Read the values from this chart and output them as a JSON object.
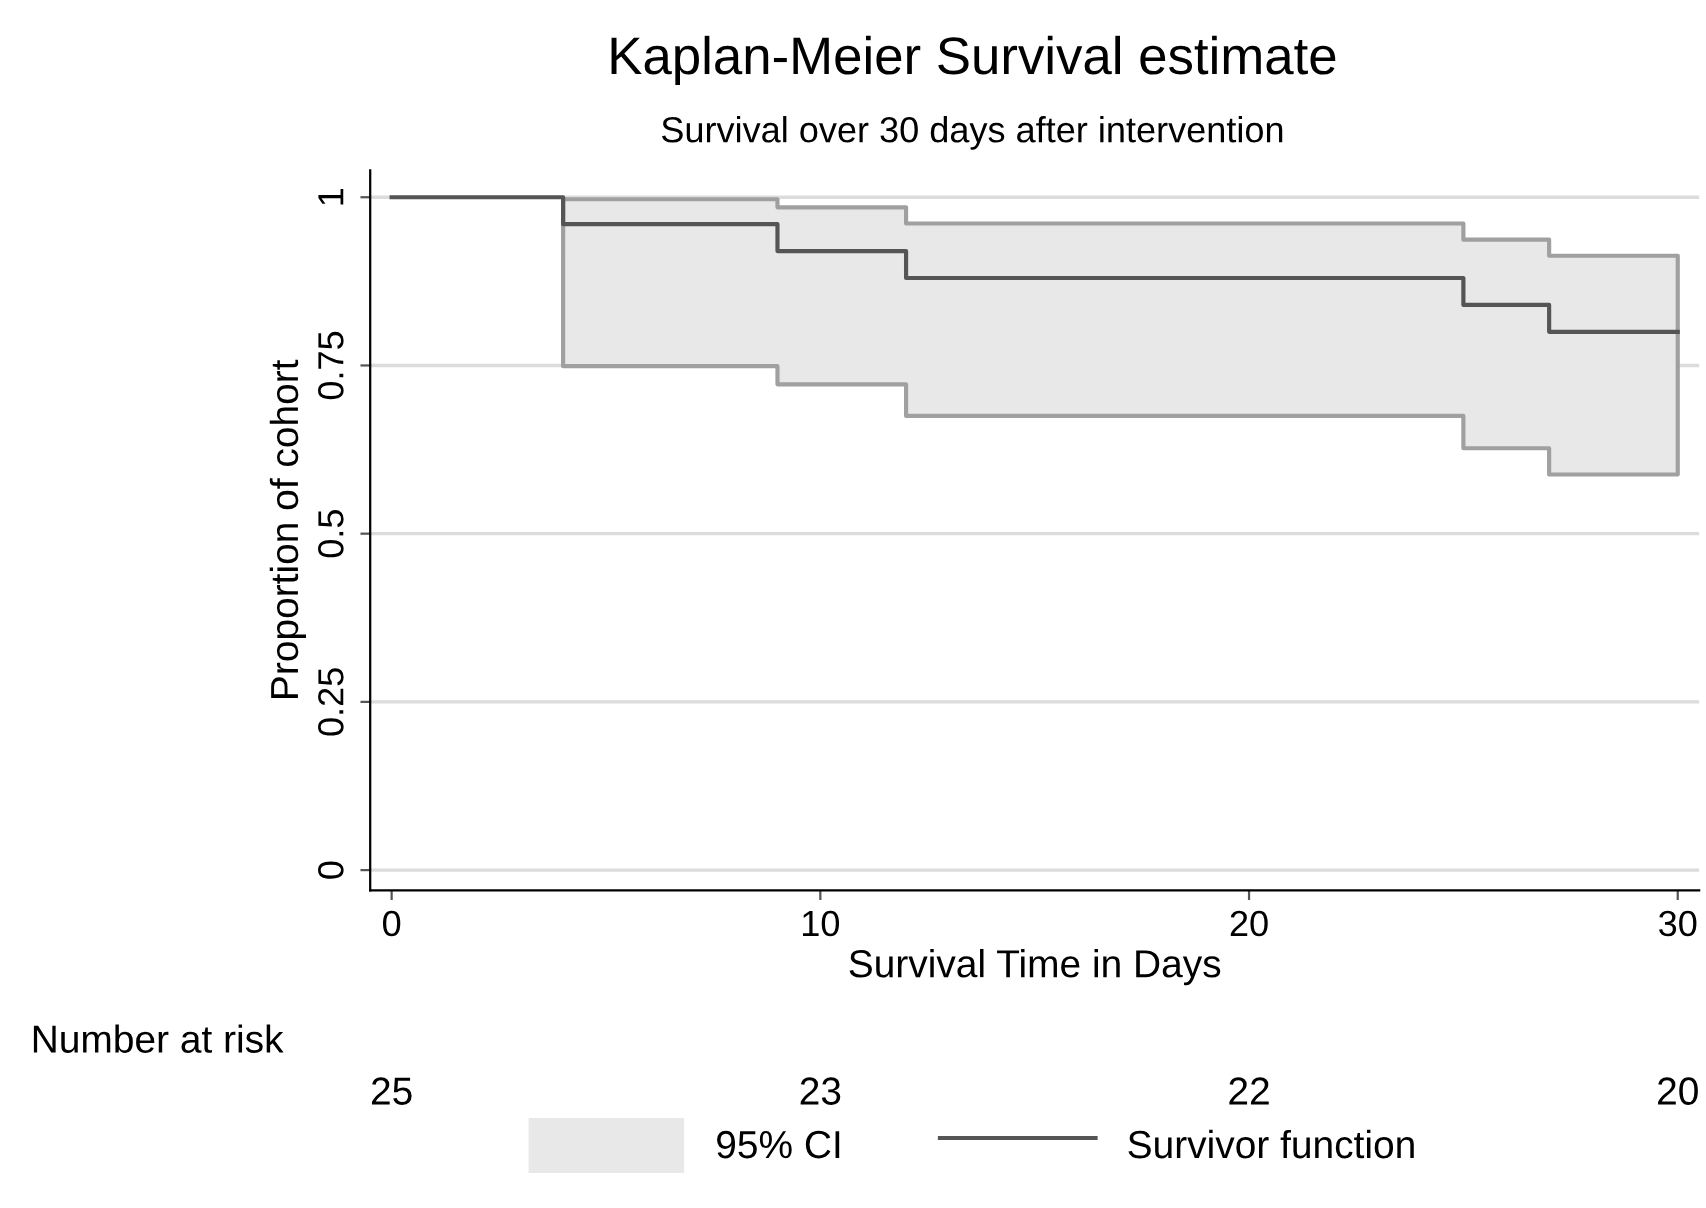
{
  "chart_data": {
    "type": "step",
    "title": "Kaplan-Meier Survival estimate",
    "subtitle": "Survival over 30 days after intervention",
    "xlabel": "Survival Time in Days",
    "ylabel": "Proportion of cohort",
    "series": [
      {
        "name": "Survivor function",
        "color": "#555555",
        "x": [
          0,
          4,
          9,
          12,
          25,
          27,
          30
        ],
        "values": [
          1,
          0.96,
          0.92,
          0.88,
          0.84,
          0.8,
          0.8
        ],
        "lower": [
          null,
          0.749,
          0.722,
          0.675,
          0.627,
          0.588,
          0.588
        ],
        "upper": [
          null,
          0.997,
          0.985,
          0.961,
          0.937,
          0.913,
          0.913
        ]
      }
    ],
    "xlim": [
      -0.5,
      30.5
    ],
    "xticks": [
      0,
      10,
      20,
      30
    ],
    "ylim": [
      -0.03,
      1.04
    ],
    "yticks": [
      0,
      0.25,
      0.5,
      0.75,
      1
    ],
    "grid": "y",
    "legend": "bottom",
    "annotations": [
      "Number at risk",
      "25",
      "23",
      "22",
      "20",
      "95% CI"
    ]
  }
}
